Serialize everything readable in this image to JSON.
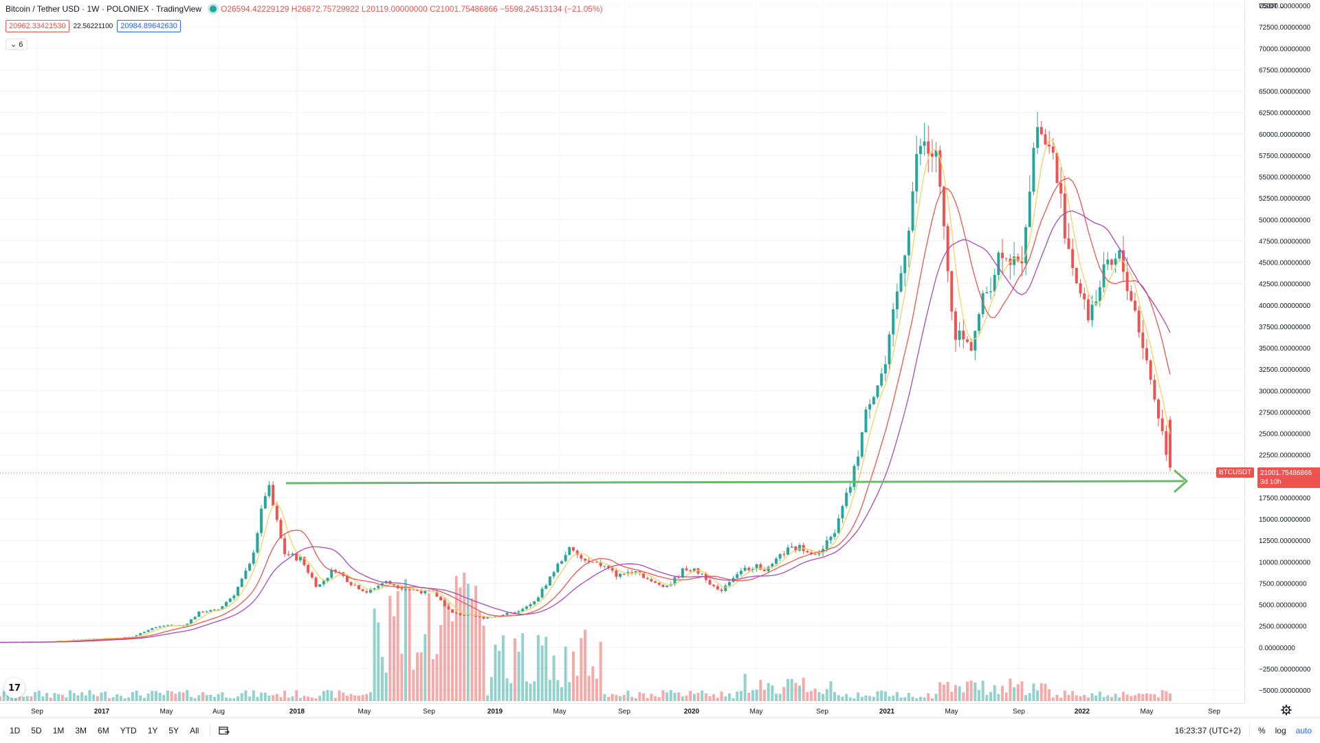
{
  "legend": {
    "symbol": "Bitcoin / Tether USD · 1W · POLONIEX · TradingView",
    "ohlc": "O26594.42229129 H26872.75729922 L20119.00000000 C21001.75486866 −5598.24513134 (−21.05%)",
    "value1": "20962.33421530",
    "value2": "22.56221100",
    "value3": "20984.89642630",
    "collapse_label": "⌄ 6"
  },
  "price_axis": {
    "currency": "USDT",
    "currency_caret": "⌄",
    "ticks": [
      "75000.00000000",
      "72500.00000000",
      "70000.00000000",
      "67500.00000000",
      "65000.00000000",
      "62500.00000000",
      "60000.00000000",
      "57500.00000000",
      "55000.00000000",
      "52500.00000000",
      "50000.00000000",
      "47500.00000000",
      "45000.00000000",
      "42500.00000000",
      "40000.00000000",
      "37500.00000000",
      "35000.00000000",
      "32500.00000000",
      "30000.00000000",
      "27500.00000000",
      "25000.00000000",
      "22500.00000000",
      "17500.00000000",
      "15000.00000000",
      "12500.00000000",
      "10000.00000000",
      "7500.00000000",
      "5000.00000000",
      "2500.00000000",
      "0.00000000",
      "−2500.00000000",
      "−5000.00000000"
    ],
    "last_price": "21001.75486866",
    "countdown": "3d 10h",
    "symbol_tag": "BTCUSDT"
  },
  "time_axis": {
    "labels": [
      "Sep",
      "2017",
      "May",
      "Aug",
      "2018",
      "May",
      "Sep",
      "2019",
      "May",
      "Sep",
      "2020",
      "May",
      "Sep",
      "2021",
      "May",
      "Sep",
      "2022",
      "May",
      "Sep"
    ]
  },
  "bottom_bar": {
    "ranges": [
      "1D",
      "5D",
      "1M",
      "3M",
      "6M",
      "YTD",
      "1Y",
      "5Y",
      "All"
    ],
    "time": "16:23:37 (UTC+2)",
    "percent": "%",
    "log": "log",
    "auto": "auto"
  },
  "logo_text": "17",
  "colors": {
    "up": "#26a69a",
    "down": "#ef5350",
    "ma_fast": "#f2d35f",
    "ma_mid": "#ef5350",
    "ma_slow": "#ab47bc",
    "support_line": "#66bb6a",
    "accent": "#2962ff"
  },
  "chart_data": {
    "type": "candlestick",
    "timeframe": "1W",
    "ylim": [
      -5000,
      75000
    ],
    "series": [
      {
        "name": "candles",
        "points": [
          [
            "2016-08",
            580
          ],
          [
            "2016-10",
            620
          ],
          [
            "2016-12",
            780
          ],
          [
            "2017-01",
            950
          ],
          [
            "2017-02",
            1050
          ],
          [
            "2017-03",
            1100
          ],
          [
            "2017-04",
            1250
          ],
          [
            "2017-05",
            2200
          ],
          [
            "2017-06",
            2600
          ],
          [
            "2017-07",
            2500
          ],
          [
            "2017-08",
            4200
          ],
          [
            "2017-09",
            4300
          ],
          [
            "2017-10",
            6200
          ],
          [
            "2017-11",
            9800
          ],
          [
            "2017-12",
            19200
          ],
          [
            "2018-01",
            11000
          ],
          [
            "2018-02",
            10300
          ],
          [
            "2018-03",
            7000
          ],
          [
            "2018-04",
            9200
          ],
          [
            "2018-05",
            7500
          ],
          [
            "2018-06",
            6400
          ],
          [
            "2018-07",
            7700
          ],
          [
            "2018-08",
            7000
          ],
          [
            "2018-09",
            6600
          ],
          [
            "2018-10",
            6300
          ],
          [
            "2018-11",
            4000
          ],
          [
            "2018-12",
            3700
          ],
          [
            "2019-01",
            3450
          ],
          [
            "2019-02",
            3800
          ],
          [
            "2019-03",
            4100
          ],
          [
            "2019-04",
            5300
          ],
          [
            "2019-05",
            8500
          ],
          [
            "2019-06",
            11500
          ],
          [
            "2019-07",
            10000
          ],
          [
            "2019-08",
            9600
          ],
          [
            "2019-09",
            8300
          ],
          [
            "2019-10",
            9200
          ],
          [
            "2019-11",
            7500
          ],
          [
            "2019-12",
            7200
          ],
          [
            "2020-01",
            9300
          ],
          [
            "2020-02",
            8600
          ],
          [
            "2020-03",
            6400
          ],
          [
            "2020-04",
            8600
          ],
          [
            "2020-05",
            9500
          ],
          [
            "2020-06",
            9100
          ],
          [
            "2020-07",
            11300
          ],
          [
            "2020-08",
            11700
          ],
          [
            "2020-09",
            10800
          ],
          [
            "2020-10",
            13800
          ],
          [
            "2020-11",
            19700
          ],
          [
            "2020-12",
            29000
          ],
          [
            "2021-01",
            33000
          ],
          [
            "2021-02",
            45000
          ],
          [
            "2021-03",
            58800
          ],
          [
            "2021-04",
            57000
          ],
          [
            "2021-05",
            37300
          ],
          [
            "2021-06",
            35000
          ],
          [
            "2021-07",
            41500
          ],
          [
            "2021-08",
            47100
          ],
          [
            "2021-09",
            43800
          ],
          [
            "2021-10",
            61300
          ],
          [
            "2021-11",
            57000
          ],
          [
            "2021-12",
            46200
          ],
          [
            "2022-01",
            38500
          ],
          [
            "2022-02",
            43200
          ],
          [
            "2022-03",
            45500
          ],
          [
            "2022-04",
            38600
          ],
          [
            "2022-05",
            29800
          ],
          [
            "2022-06",
            21001
          ]
        ]
      },
      {
        "name": "ma_fast"
      },
      {
        "name": "ma_mid"
      },
      {
        "name": "ma_slow"
      }
    ],
    "support_level": 19700
  }
}
